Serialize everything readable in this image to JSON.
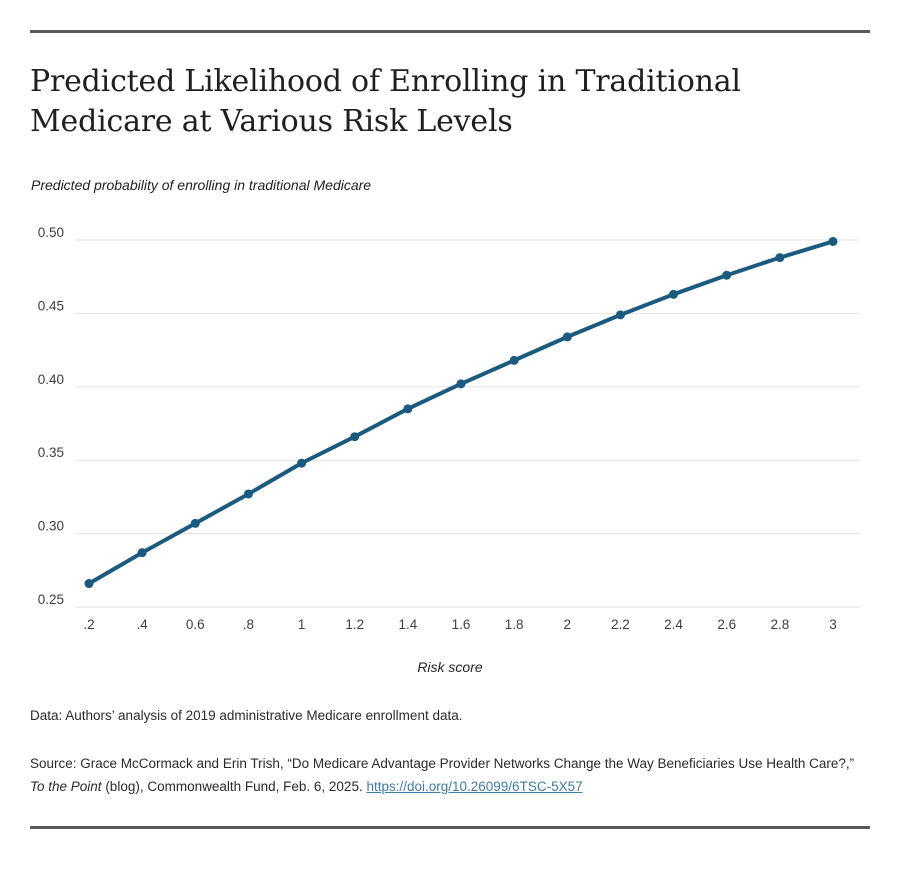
{
  "colors": {
    "accent_line": "#1a5a7e",
    "gridline": "#e3e3e3",
    "divider_rule": "#58595b",
    "link": "#3e7ca6",
    "text": "#222222"
  },
  "header": {
    "title": "Predicted Likelihood of Enrolling in Traditional Medicare at Various Risk Levels"
  },
  "chart_data": {
    "type": "line",
    "title": "Predicted Likelihood of Enrolling in Traditional Medicare at Various Risk Levels",
    "subtitle": "Predicted probability of enrolling in traditional Medicare",
    "xlabel": "Risk score",
    "ylabel": "Predicted probability of enrolling in traditional Medicare",
    "x": [
      0.2,
      0.4,
      0.6,
      0.8,
      1,
      1.2,
      1.4,
      1.6,
      1.8,
      2,
      2.2,
      2.4,
      2.6,
      2.8,
      3
    ],
    "x_tick_labels": [
      ".2",
      ".4",
      "0.6",
      ".8",
      "1",
      "1.2",
      "1.4",
      "1.6",
      "1.8",
      "2",
      "2.2",
      "2.4",
      "2.6",
      "2.8",
      "3"
    ],
    "series": [
      {
        "name": "Predicted probability of enrolling in traditional Medicare",
        "values": [
          0.266,
          0.287,
          0.307,
          0.327,
          0.348,
          0.366,
          0.385,
          0.402,
          0.418,
          0.434,
          0.449,
          0.463,
          0.476,
          0.488,
          0.499
        ]
      }
    ],
    "xlim": [
      0.2,
      3
    ],
    "ylim": [
      0.25,
      0.5
    ],
    "y_ticks": [
      0.25,
      0.3,
      0.35,
      0.4,
      0.45,
      0.5
    ],
    "y_tick_labels": [
      "0.25",
      "0.30",
      "0.35",
      "0.40",
      "0.45",
      "0.50"
    ],
    "grid": true,
    "legend": false,
    "line_color": "#1a5a7e",
    "marker_color": "#1a5a7e",
    "grid_color": "#e3e3e3"
  },
  "footer": {
    "data_note": "Data: Authors’ analysis of 2019 administrative Medicare enrollment data.",
    "source_line1": "Source: Grace McCormack and Erin Trish, “Do Medicare Advantage Provider Networks Change the Way Beneficiaries Use Health Care?,”",
    "source_line2_italic": "To the Point",
    "source_line2_text": " (blog), Commonwealth Fund, Feb. 6, 2025. ",
    "source_link_text": "https://doi.org/10.26099/6TSC-5X57"
  }
}
